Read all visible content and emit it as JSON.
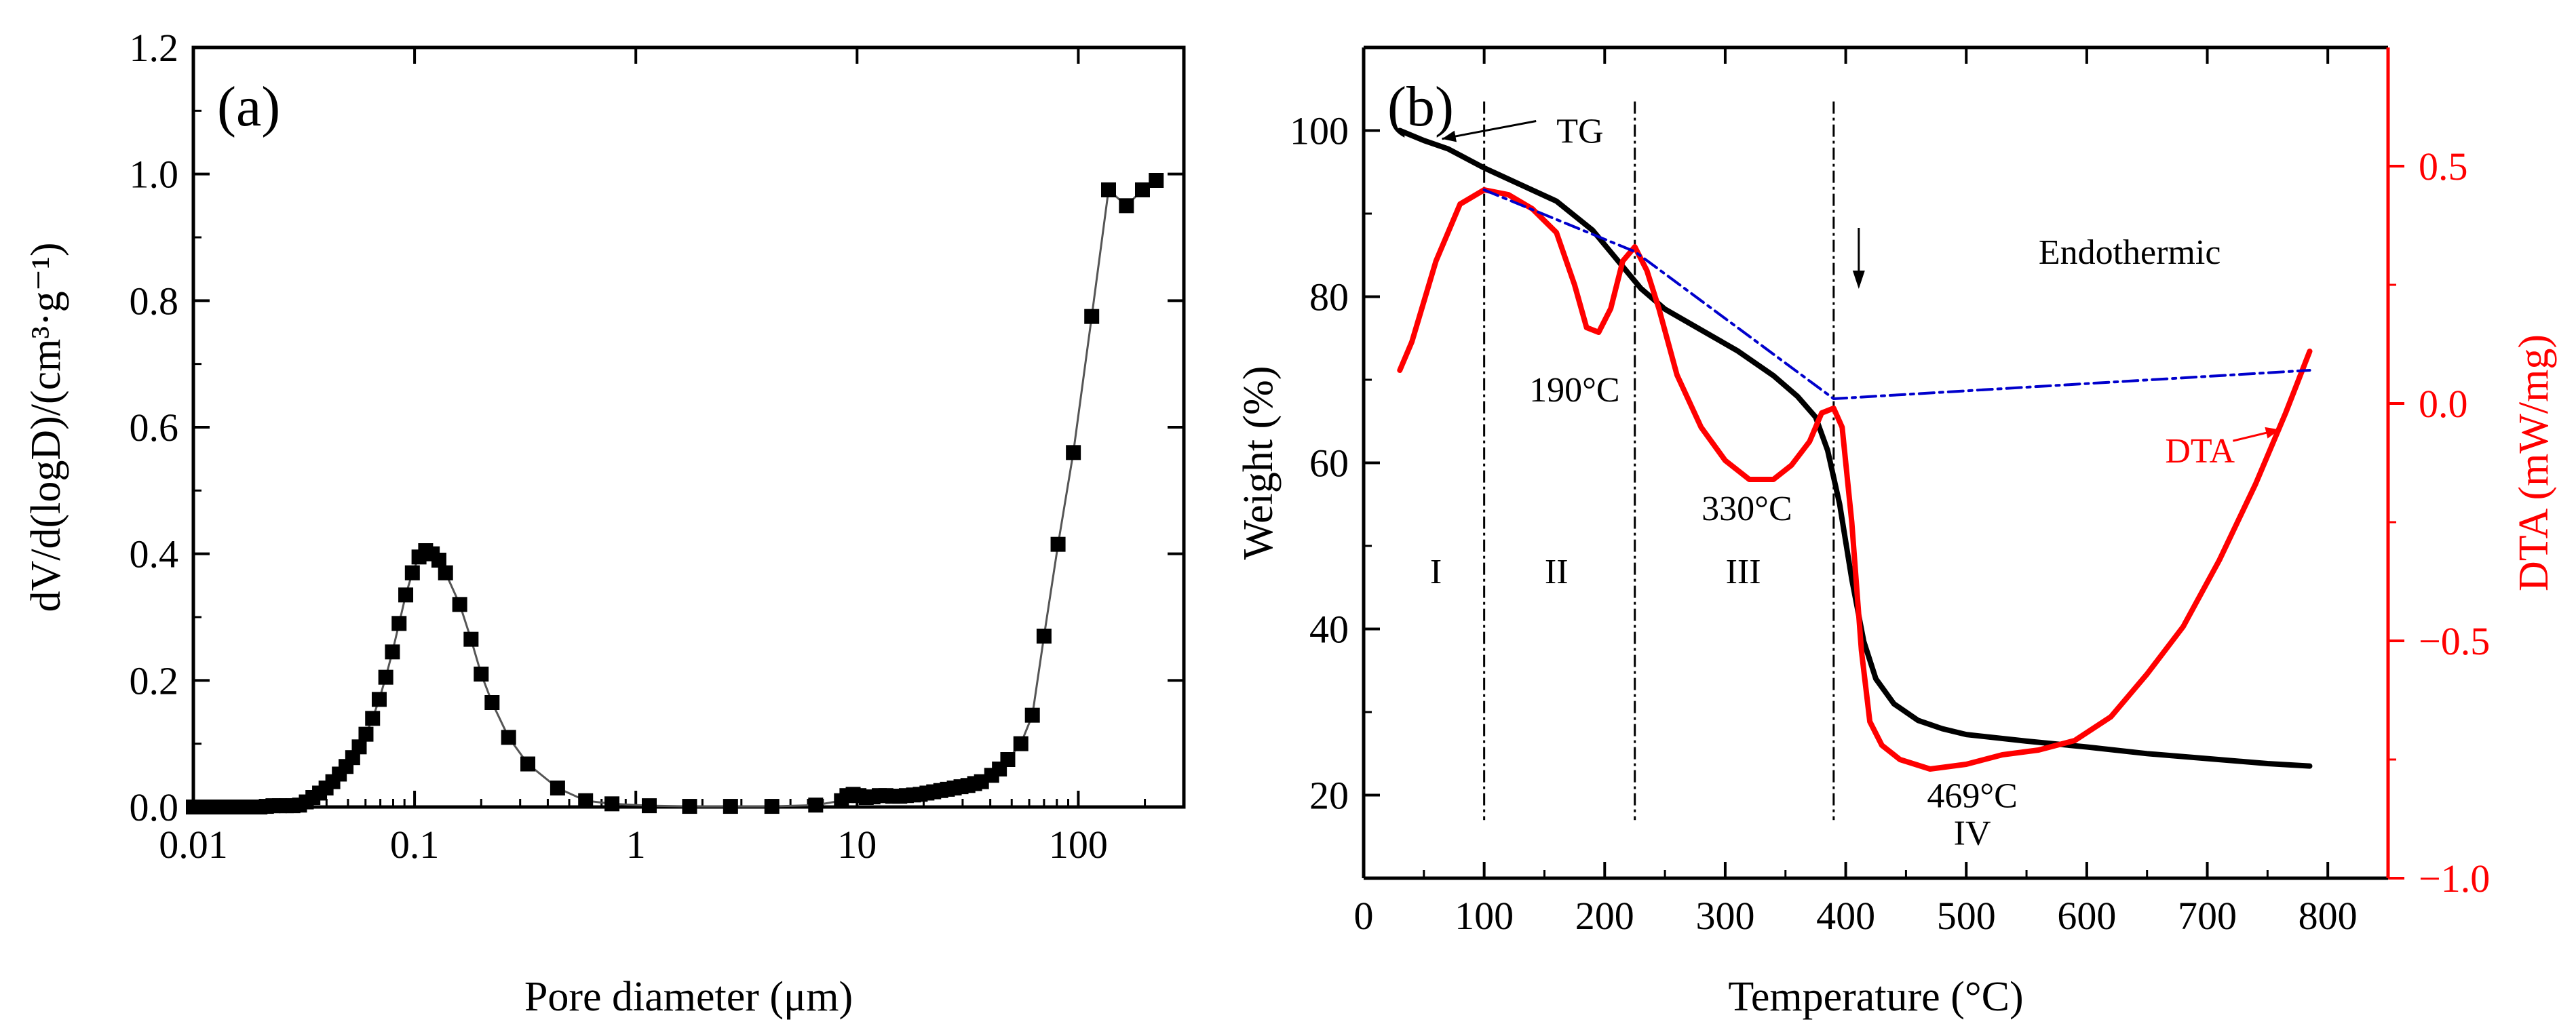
{
  "chart_data": [
    {
      "type": "scatter",
      "panel_label": "(a)",
      "xlabel": "Pore diameter (μm)",
      "ylabel": "dV/d(logD)/(cm³·g⁻¹)",
      "xscale": "log",
      "xlim": [
        0.01,
        300
      ],
      "ylim": [
        0,
        1.2
      ],
      "x_ticks": [
        0.01,
        0.1,
        1,
        10,
        100
      ],
      "x_tick_labels": [
        "0.01",
        "0.1",
        "1",
        "10",
        "100"
      ],
      "y_ticks": [
        0,
        0.2,
        0.4,
        0.6,
        0.8,
        1.0,
        1.2
      ],
      "y_tick_labels": [
        "0.0",
        "0.2",
        "0.4",
        "0.6",
        "0.8",
        "1.0",
        "1.2"
      ],
      "grid": false,
      "series": [
        {
          "color": "#000000",
          "marker": "square",
          "line": "#555555",
          "points": [
            [
              0.01,
              0.0
            ],
            [
              0.0107,
              0.0
            ],
            [
              0.0115,
              0.0
            ],
            [
              0.0123,
              0.0
            ],
            [
              0.0132,
              0.0
            ],
            [
              0.0141,
              0.0
            ],
            [
              0.0151,
              0.0
            ],
            [
              0.0162,
              0.0
            ],
            [
              0.0174,
              0.0
            ],
            [
              0.0186,
              0.0
            ],
            [
              0.02,
              0.0
            ],
            [
              0.0214,
              0.001
            ],
            [
              0.0229,
              0.002
            ],
            [
              0.0245,
              0.002
            ],
            [
              0.0263,
              0.002
            ],
            [
              0.0282,
              0.002
            ],
            [
              0.0302,
              0.003
            ],
            [
              0.0324,
              0.008
            ],
            [
              0.0347,
              0.015
            ],
            [
              0.0372,
              0.022
            ],
            [
              0.0398,
              0.03
            ],
            [
              0.0427,
              0.04
            ],
            [
              0.0457,
              0.052
            ],
            [
              0.049,
              0.064
            ],
            [
              0.0525,
              0.078
            ],
            [
              0.0562,
              0.095
            ],
            [
              0.0603,
              0.115
            ],
            [
              0.0646,
              0.14
            ],
            [
              0.0692,
              0.17
            ],
            [
              0.0741,
              0.205
            ],
            [
              0.0794,
              0.245
            ],
            [
              0.0851,
              0.29
            ],
            [
              0.0912,
              0.335
            ],
            [
              0.0977,
              0.37
            ],
            [
              0.1047,
              0.395
            ],
            [
              0.1122,
              0.405
            ],
            [
              0.1202,
              0.4
            ],
            [
              0.1288,
              0.39
            ],
            [
              0.138,
              0.37
            ],
            [
              0.16,
              0.32
            ],
            [
              0.18,
              0.265
            ],
            [
              0.2,
              0.21
            ],
            [
              0.224,
              0.165
            ],
            [
              0.266,
              0.11
            ],
            [
              0.325,
              0.068
            ],
            [
              0.443,
              0.03
            ],
            [
              0.593,
              0.01
            ],
            [
              0.78,
              0.005
            ],
            [
              1.15,
              0.002
            ],
            [
              1.75,
              0.001
            ],
            [
              2.68,
              0.001
            ],
            [
              4.12,
              0.001
            ],
            [
              6.5,
              0.003
            ],
            [
              8.5,
              0.01
            ],
            [
              9.0,
              0.018
            ],
            [
              9.6,
              0.02
            ],
            [
              10.2,
              0.018
            ],
            [
              11.0,
              0.015
            ],
            [
              11.8,
              0.016
            ],
            [
              12.6,
              0.018
            ],
            [
              13.5,
              0.018
            ],
            [
              14.5,
              0.017
            ],
            [
              15.6,
              0.017
            ],
            [
              16.7,
              0.018
            ],
            [
              18.0,
              0.019
            ],
            [
              19.3,
              0.02
            ],
            [
              20.7,
              0.022
            ],
            [
              22.2,
              0.024
            ],
            [
              23.9,
              0.026
            ],
            [
              25.6,
              0.028
            ],
            [
              27.5,
              0.03
            ],
            [
              29.5,
              0.032
            ],
            [
              31.7,
              0.034
            ],
            [
              34.0,
              0.037
            ],
            [
              36.5,
              0.04
            ],
            [
              40.6,
              0.05
            ],
            [
              44.0,
              0.06
            ],
            [
              48.0,
              0.075
            ],
            [
              55.0,
              0.1
            ],
            [
              62.0,
              0.145
            ],
            [
              70.0,
              0.27
            ],
            [
              81.0,
              0.415
            ],
            [
              95.0,
              0.56
            ],
            [
              115.0,
              0.775
            ],
            [
              137.0,
              0.975
            ],
            [
              165.0,
              0.95
            ],
            [
              195.0,
              0.975
            ],
            [
              225.0,
              0.99
            ]
          ]
        }
      ]
    },
    {
      "type": "line",
      "panel_label": "(b)",
      "xlabel": "Temperature (°C)",
      "ylabel_left": "Weight (%)",
      "ylabel_right": "DTA (mW/mg)",
      "xlim": [
        0,
        850
      ],
      "ylim_left": [
        10,
        110
      ],
      "ylim_right": [
        -1.0,
        0.75
      ],
      "x_ticks": [
        0,
        100,
        200,
        300,
        400,
        500,
        600,
        700,
        800
      ],
      "x_tick_labels": [
        "0",
        "100",
        "200",
        "300",
        "400",
        "500",
        "600",
        "700",
        "800"
      ],
      "y_left_ticks": [
        20,
        40,
        60,
        80,
        100
      ],
      "y_left_tick_labels": [
        "20",
        "40",
        "60",
        "80",
        "100"
      ],
      "y_right_ticks": [
        0.5,
        0.0,
        -0.5,
        -1.0
      ],
      "y_right_tick_labels": [
        "0.5",
        "0.0",
        "−0.5",
        "−1.0"
      ],
      "grid": false,
      "series": [
        {
          "name": "TG",
          "axis": "left",
          "color": "#000000",
          "points": [
            [
              30,
              100.0
            ],
            [
              50,
              98.8
            ],
            [
              70,
              97.8
            ],
            [
              100,
              95.5
            ],
            [
              130,
              93.5
            ],
            [
              160,
              91.5
            ],
            [
              190,
              88.0
            ],
            [
              210,
              84.5
            ],
            [
              230,
              81.0
            ],
            [
              250,
              78.5
            ],
            [
              280,
              76.0
            ],
            [
              310,
              73.5
            ],
            [
              340,
              70.5
            ],
            [
              360,
              68.0
            ],
            [
              375,
              65.5
            ],
            [
              385,
              61.5
            ],
            [
              395,
              55.0
            ],
            [
              405,
              46.0
            ],
            [
              415,
              38.5
            ],
            [
              425,
              34.0
            ],
            [
              440,
              31.0
            ],
            [
              460,
              29.0
            ],
            [
              480,
              28.0
            ],
            [
              500,
              27.3
            ],
            [
              550,
              26.5
            ],
            [
              600,
              25.8
            ],
            [
              650,
              25.0
            ],
            [
              700,
              24.4
            ],
            [
              750,
              23.8
            ],
            [
              785,
              23.5
            ]
          ]
        },
        {
          "name": "DTA",
          "axis": "right",
          "color": "#ff0000",
          "points": [
            [
              30,
              0.07
            ],
            [
              40,
              0.13
            ],
            [
              60,
              0.3
            ],
            [
              80,
              0.42
            ],
            [
              100,
              0.45
            ],
            [
              120,
              0.44
            ],
            [
              140,
              0.41
            ],
            [
              160,
              0.36
            ],
            [
              175,
              0.25
            ],
            [
              185,
              0.16
            ],
            [
              195,
              0.15
            ],
            [
              205,
              0.2
            ],
            [
              215,
              0.3
            ],
            [
              225,
              0.33
            ],
            [
              235,
              0.28
            ],
            [
              245,
              0.2
            ],
            [
              260,
              0.06
            ],
            [
              280,
              -0.05
            ],
            [
              300,
              -0.12
            ],
            [
              320,
              -0.16
            ],
            [
              340,
              -0.16
            ],
            [
              355,
              -0.13
            ],
            [
              370,
              -0.08
            ],
            [
              380,
              -0.02
            ],
            [
              390,
              -0.01
            ],
            [
              397,
              -0.05
            ],
            [
              405,
              -0.25
            ],
            [
              413,
              -0.52
            ],
            [
              420,
              -0.67
            ],
            [
              430,
              -0.72
            ],
            [
              445,
              -0.75
            ],
            [
              470,
              -0.77
            ],
            [
              500,
              -0.76
            ],
            [
              530,
              -0.74
            ],
            [
              560,
              -0.73
            ],
            [
              590,
              -0.71
            ],
            [
              620,
              -0.66
            ],
            [
              650,
              -0.57
            ],
            [
              680,
              -0.47
            ],
            [
              710,
              -0.33
            ],
            [
              740,
              -0.17
            ],
            [
              765,
              -0.02
            ],
            [
              785,
              0.11
            ]
          ]
        },
        {
          "name": "baseline",
          "axis": "right",
          "color": "#0000cc",
          "style": "dash-dot",
          "points": [
            [
              100,
              0.45
            ],
            [
              225,
              0.32
            ],
            [
              390,
              0.01
            ],
            [
              785,
              0.07
            ]
          ]
        }
      ],
      "vlines": [
        100,
        225,
        390
      ],
      "annotations": [
        {
          "text": "TG",
          "x": 160,
          "y": 100.0,
          "axis": "left",
          "arrow_to": [
            65,
            99.0
          ]
        },
        {
          "text": "Endothermic",
          "x": 560,
          "y": 0.32,
          "axis": "right",
          "arrow": "down"
        },
        {
          "text": "190°C",
          "x": 175,
          "y": 0.03,
          "axis": "right"
        },
        {
          "text": "330°C",
          "x": 318,
          "y": -0.22,
          "axis": "right"
        },
        {
          "text": "DTA",
          "x": 665,
          "y": 61.5,
          "axis": "left",
          "arrow_to": [
            760,
            64.0
          ]
        },
        {
          "text": "469°C",
          "x": 505,
          "y": 20.0,
          "axis": "left"
        },
        {
          "text": "IV",
          "x": 505,
          "y": 15.5,
          "axis": "left"
        },
        {
          "text": "I",
          "x": 60,
          "y": 47.0,
          "axis": "left"
        },
        {
          "text": "II",
          "x": 160,
          "y": 47.0,
          "axis": "left"
        },
        {
          "text": "III",
          "x": 315,
          "y": 47.0,
          "axis": "left"
        }
      ]
    }
  ]
}
